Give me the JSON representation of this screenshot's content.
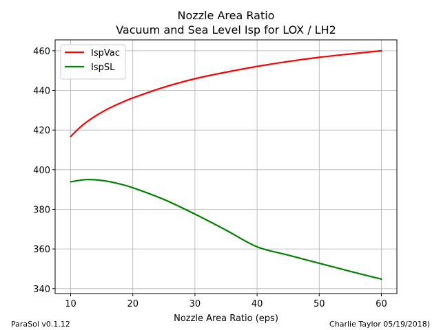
{
  "chart_data": {
    "type": "line",
    "title": "Nozzle Area Ratio",
    "subtitle": "Vacuum and Sea Level Isp for LOX / LH2",
    "xlabel": "Nozzle Area Ratio (eps)",
    "ylabel": "",
    "xlim": [
      7.5,
      62.5
    ],
    "ylim": [
      337.5,
      465.5
    ],
    "xticks": [
      10,
      20,
      30,
      40,
      50,
      60
    ],
    "yticks": [
      340,
      360,
      380,
      400,
      420,
      440,
      460
    ],
    "grid": true,
    "legend_position": "top-left",
    "series": [
      {
        "name": "IspVac",
        "color": "#ff0000",
        "x": [
          10,
          12,
          14,
          16,
          18,
          20,
          25,
          30,
          35,
          40,
          45,
          50,
          55,
          60
        ],
        "y": [
          416.8,
          422.7,
          427.1,
          430.7,
          433.6,
          436.2,
          441.6,
          445.9,
          449.2,
          452.1,
          454.6,
          456.7,
          458.4,
          460.0
        ]
      },
      {
        "name": "IspSL",
        "color": "#008000",
        "x": [
          10,
          12,
          13,
          14,
          16,
          18,
          20,
          25,
          30,
          35,
          40,
          45,
          50,
          55,
          60
        ],
        "y": [
          393.9,
          394.9,
          395.0,
          394.9,
          394.1,
          392.7,
          390.9,
          385.0,
          377.6,
          369.5,
          361.1,
          356.9,
          352.8,
          348.7,
          344.8
        ]
      }
    ]
  },
  "footer": {
    "left": "ParaSol v0.1.12",
    "right": "Charlie Taylor 05/19/2018)"
  }
}
